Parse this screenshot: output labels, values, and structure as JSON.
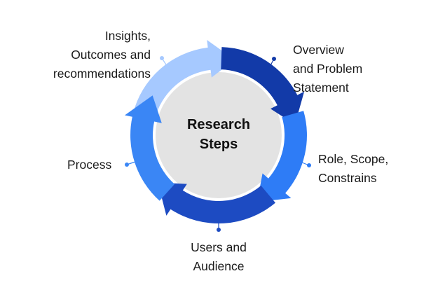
{
  "center": {
    "title": "Research\nSteps"
  },
  "steps": [
    {
      "id": "overview",
      "label": "Overview\nand Problem\nStatement",
      "color": "#123aa8"
    },
    {
      "id": "role",
      "label": "Role, Scope,\nConstrains",
      "color": "#2e7cf6"
    },
    {
      "id": "users",
      "label": "Users and\nAudience",
      "color": "#1d4bc2"
    },
    {
      "id": "process",
      "label": "Process",
      "color": "#3a86f5"
    },
    {
      "id": "insights",
      "label": "Insights,\nOutcomes and\nrecommendations",
      "color": "#a6c9ff"
    }
  ],
  "colors": {
    "inner_disc": "#e3e3e3",
    "text": "#1a1a1a"
  }
}
